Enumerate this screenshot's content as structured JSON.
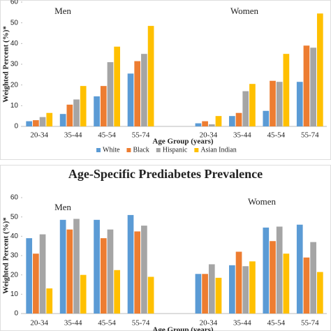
{
  "chart_data": [
    {
      "type": "bar",
      "x_label": "Age Group (years)",
      "y_label": "Weighted Percent (%)*",
      "groups": [
        "Men",
        "Women"
      ],
      "categories": [
        "20-34",
        "35-44",
        "45-54",
        "55-74",
        "20-34",
        "35-44",
        "45-54",
        "55-74"
      ],
      "ylim": [
        0,
        60
      ],
      "yticks": [
        0,
        10,
        20,
        30,
        40,
        50,
        60
      ],
      "legend": "bottom",
      "series": [
        {
          "name": "White",
          "color": "#5b9bd5",
          "values": [
            2.5,
            6,
            14.5,
            25.5,
            1.5,
            5,
            7.5,
            21.5
          ]
        },
        {
          "name": "Black",
          "color": "#ed7d31",
          "values": [
            3,
            10.5,
            19.5,
            31.5,
            2.5,
            6.5,
            22,
            39
          ]
        },
        {
          "name": "Hispanic",
          "color": "#a5a5a5",
          "values": [
            4.5,
            13,
            31,
            35,
            1,
            17,
            21.5,
            38
          ]
        },
        {
          "name": "Asian Indian",
          "color": "#ffc000",
          "values": [
            6.5,
            19.5,
            38.5,
            48.5,
            5,
            20.5,
            35,
            54.5
          ]
        }
      ]
    },
    {
      "type": "bar",
      "title": "Age-Specific Prediabetes Prevalence",
      "x_label": "Age Group (years)",
      "y_label": "Weighted Percent (%)*",
      "groups": [
        "Men",
        "Women"
      ],
      "categories": [
        "20-34",
        "35-44",
        "45-54",
        "55-74",
        "20-34",
        "35-44",
        "45-54",
        "55-74"
      ],
      "ylim": [
        0,
        60
      ],
      "yticks": [
        0,
        10,
        20,
        30,
        40,
        50,
        60
      ],
      "series": [
        {
          "color": "#5b9bd5",
          "values": [
            39,
            48.5,
            48.5,
            51,
            20.5,
            25,
            44.5,
            46
          ]
        },
        {
          "color": "#ed7d31",
          "values": [
            31,
            43.5,
            39,
            42.5,
            20.5,
            32,
            37.5,
            29
          ]
        },
        {
          "color": "#a5a5a5",
          "values": [
            41,
            49,
            43.5,
            45.5,
            25.5,
            24.5,
            45,
            37
          ]
        },
        {
          "color": "#ffc000",
          "values": [
            13,
            20,
            22.5,
            19,
            18.5,
            27,
            31,
            21.5
          ]
        }
      ]
    }
  ]
}
